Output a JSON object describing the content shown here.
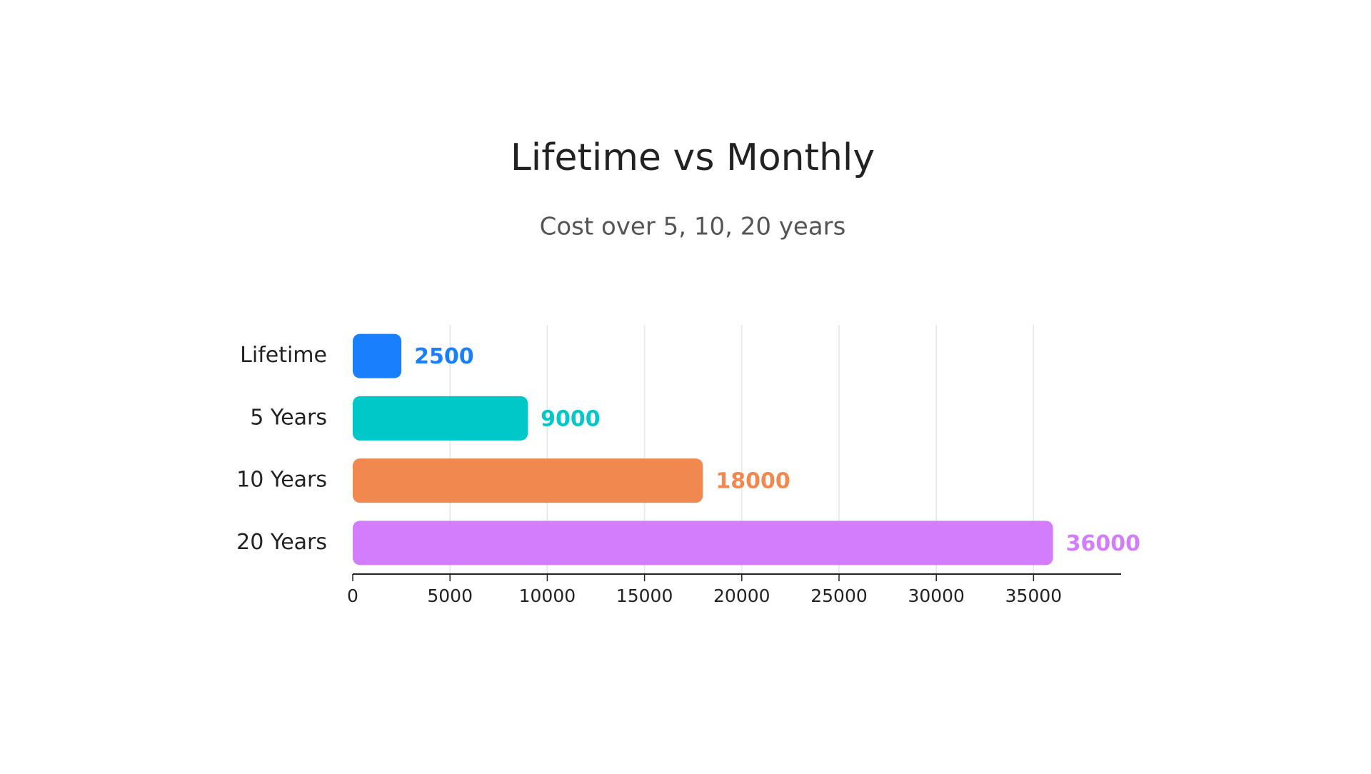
{
  "chart_data": {
    "type": "bar",
    "orientation": "horizontal",
    "title": "Lifetime vs Monthly",
    "subtitle": "Cost over 5, 10, 20 years",
    "categories": [
      "Lifetime",
      "5 Years",
      "10 Years",
      "20 Years"
    ],
    "values": [
      2500,
      9000,
      18000,
      36000
    ],
    "colors": [
      "#1a7ffc",
      "#00c8c8",
      "#f0884f",
      "#d47dfc"
    ],
    "xlim": [
      0,
      39500
    ],
    "xticks": [
      0,
      5000,
      10000,
      15000,
      20000,
      25000,
      30000,
      35000
    ],
    "grid": true
  }
}
